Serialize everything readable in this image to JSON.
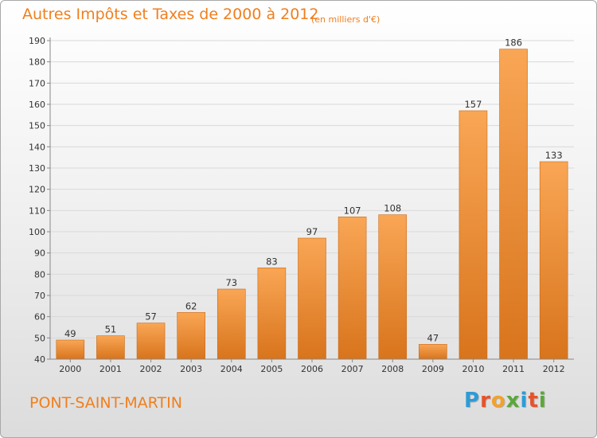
{
  "header": {
    "title": "Autres Impôts et Taxes de 2000 à 2012",
    "unit": "(en milliers d'€)"
  },
  "footer": {
    "commune": "PONT-SAINT-MARTIN",
    "logo_text": "Proxiti"
  },
  "colors": {
    "accent": "#f07f1e",
    "bar_top": "#f9a655",
    "bar_bottom": "#d8741c",
    "logo_letters": [
      "#2e9bd6",
      "#e8522a",
      "#f3a12b",
      "#5aa83a",
      "#2e9bd6",
      "#e8522a",
      "#5aa83a"
    ]
  },
  "chart_data": {
    "type": "bar",
    "categories": [
      "2000",
      "2001",
      "2002",
      "2003",
      "2004",
      "2005",
      "2006",
      "2007",
      "2008",
      "2009",
      "2010",
      "2011",
      "2012"
    ],
    "values": [
      49,
      51,
      57,
      62,
      73,
      83,
      97,
      107,
      108,
      47,
      157,
      186,
      133
    ],
    "ylim": [
      40,
      190
    ],
    "yticks": [
      40,
      50,
      60,
      70,
      80,
      90,
      100,
      110,
      120,
      130,
      140,
      150,
      160,
      170,
      180,
      190
    ],
    "grid": true,
    "legend": "none"
  }
}
